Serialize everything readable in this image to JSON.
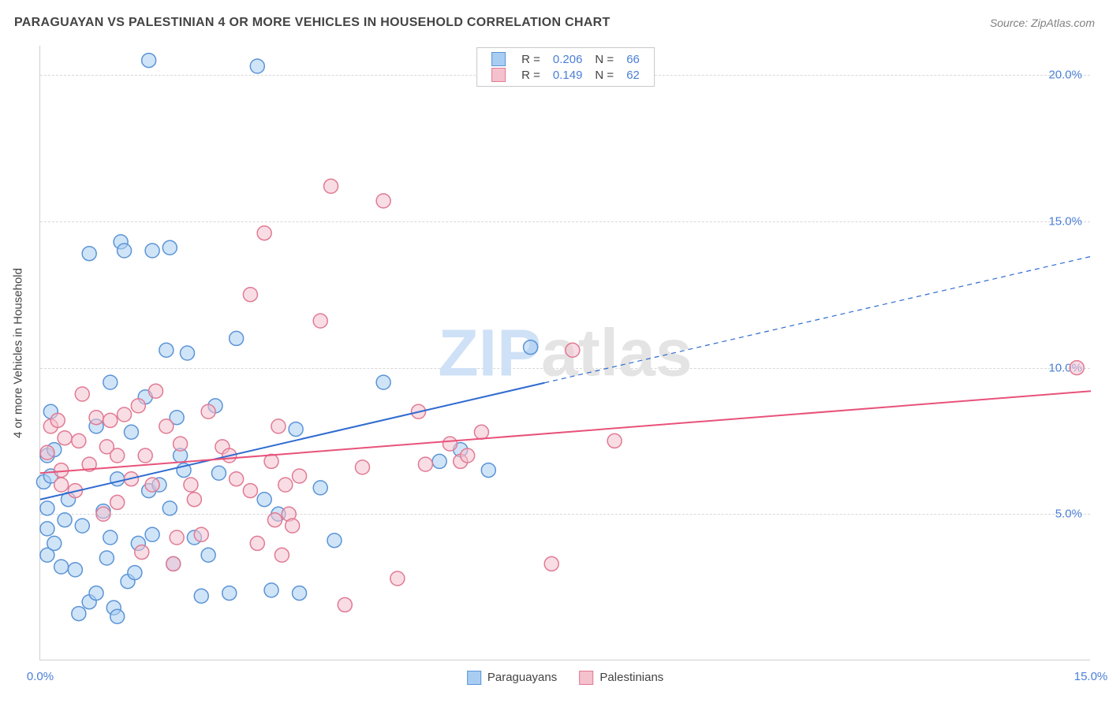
{
  "title": "PARAGUAYAN VS PALESTINIAN 4 OR MORE VEHICLES IN HOUSEHOLD CORRELATION CHART",
  "source": "Source: ZipAtlas.com",
  "yAxisLabel": "4 or more Vehicles in Household",
  "chart": {
    "type": "scatter",
    "xlim": [
      0,
      15
    ],
    "ylim": [
      0,
      21
    ],
    "xTicks": [
      {
        "v": 0,
        "label": "0.0%"
      },
      {
        "v": 15,
        "label": "15.0%"
      }
    ],
    "yTicks": [
      {
        "v": 5,
        "label": "5.0%"
      },
      {
        "v": 10,
        "label": "10.0%"
      },
      {
        "v": 15,
        "label": "15.0%"
      },
      {
        "v": 20,
        "label": "20.0%"
      }
    ],
    "gridColor": "#d8d8d8",
    "axisColor": "#cfcfcf",
    "background": "#ffffff",
    "markerRadius": 9,
    "markerStrokeWidth": 1.5,
    "markerOpacity": 0.55,
    "series": [
      {
        "name": "Paraguayans",
        "fill": "#a9cdf2",
        "stroke": "#5b94d6",
        "R": "0.206",
        "N": "66",
        "trend": {
          "x1": 0,
          "y1": 5.5,
          "x2": 15,
          "y2": 13.8,
          "solidUntilX": 7.2,
          "color": "#2f6bd0",
          "width": 2
        },
        "points": [
          [
            0.05,
            6.1
          ],
          [
            0.1,
            4.5
          ],
          [
            0.1,
            7.0
          ],
          [
            0.15,
            6.3
          ],
          [
            0.2,
            7.2
          ],
          [
            0.1,
            5.2
          ],
          [
            0.15,
            8.5
          ],
          [
            0.1,
            3.6
          ],
          [
            0.2,
            4.0
          ],
          [
            0.3,
            3.2
          ],
          [
            0.35,
            4.8
          ],
          [
            0.4,
            5.5
          ],
          [
            0.5,
            3.1
          ],
          [
            0.55,
            1.6
          ],
          [
            0.6,
            4.6
          ],
          [
            0.7,
            2.0
          ],
          [
            0.7,
            13.9
          ],
          [
            0.8,
            8.0
          ],
          [
            0.8,
            2.3
          ],
          [
            0.9,
            5.1
          ],
          [
            0.95,
            3.5
          ],
          [
            1.0,
            9.5
          ],
          [
            1.0,
            4.2
          ],
          [
            1.05,
            1.8
          ],
          [
            1.1,
            6.2
          ],
          [
            1.1,
            1.5
          ],
          [
            1.15,
            14.3
          ],
          [
            1.2,
            14.0
          ],
          [
            1.25,
            2.7
          ],
          [
            1.3,
            7.8
          ],
          [
            1.35,
            3.0
          ],
          [
            1.4,
            4.0
          ],
          [
            1.5,
            9.0
          ],
          [
            1.55,
            5.8
          ],
          [
            1.6,
            14.0
          ],
          [
            1.6,
            4.3
          ],
          [
            1.55,
            20.5
          ],
          [
            1.7,
            6.0
          ],
          [
            1.8,
            10.6
          ],
          [
            1.85,
            5.2
          ],
          [
            1.85,
            14.1
          ],
          [
            1.9,
            3.3
          ],
          [
            1.95,
            8.3
          ],
          [
            2.0,
            7.0
          ],
          [
            2.05,
            6.5
          ],
          [
            2.1,
            10.5
          ],
          [
            2.2,
            4.2
          ],
          [
            2.3,
            2.2
          ],
          [
            2.4,
            3.6
          ],
          [
            2.5,
            8.7
          ],
          [
            2.55,
            6.4
          ],
          [
            2.7,
            2.3
          ],
          [
            2.8,
            11.0
          ],
          [
            3.1,
            20.3
          ],
          [
            3.2,
            5.5
          ],
          [
            3.3,
            2.4
          ],
          [
            3.4,
            5.0
          ],
          [
            3.65,
            7.9
          ],
          [
            3.7,
            2.3
          ],
          [
            4.0,
            5.9
          ],
          [
            4.2,
            4.1
          ],
          [
            4.9,
            9.5
          ],
          [
            5.7,
            6.8
          ],
          [
            6.0,
            7.2
          ],
          [
            6.4,
            6.5
          ],
          [
            7.0,
            10.7
          ]
        ]
      },
      {
        "name": "Palestinians",
        "fill": "#f4c1cd",
        "stroke": "#e17a93",
        "R": "0.149",
        "N": "62",
        "trend": {
          "x1": 0,
          "y1": 6.4,
          "x2": 15,
          "y2": 9.2,
          "solidUntilX": 15,
          "color": "#e8527a",
          "width": 2
        },
        "points": [
          [
            0.1,
            7.1
          ],
          [
            0.15,
            8.0
          ],
          [
            0.25,
            8.2
          ],
          [
            0.3,
            6.5
          ],
          [
            0.3,
            6.0
          ],
          [
            0.35,
            7.6
          ],
          [
            0.5,
            5.8
          ],
          [
            0.55,
            7.5
          ],
          [
            0.6,
            9.1
          ],
          [
            0.7,
            6.7
          ],
          [
            0.8,
            8.3
          ],
          [
            0.9,
            5.0
          ],
          [
            0.95,
            7.3
          ],
          [
            1.0,
            8.2
          ],
          [
            1.1,
            7.0
          ],
          [
            1.1,
            5.4
          ],
          [
            1.2,
            8.4
          ],
          [
            1.3,
            6.2
          ],
          [
            1.4,
            8.7
          ],
          [
            1.45,
            3.7
          ],
          [
            1.5,
            7.0
          ],
          [
            1.6,
            6.0
          ],
          [
            1.65,
            9.2
          ],
          [
            1.8,
            8.0
          ],
          [
            1.9,
            3.3
          ],
          [
            1.95,
            4.2
          ],
          [
            2.0,
            7.4
          ],
          [
            2.15,
            6.0
          ],
          [
            2.2,
            5.5
          ],
          [
            2.3,
            4.3
          ],
          [
            2.4,
            8.5
          ],
          [
            2.6,
            7.3
          ],
          [
            2.7,
            7.0
          ],
          [
            2.8,
            6.2
          ],
          [
            3.0,
            5.8
          ],
          [
            3.0,
            12.5
          ],
          [
            3.1,
            4.0
          ],
          [
            3.2,
            14.6
          ],
          [
            3.3,
            6.8
          ],
          [
            3.35,
            4.8
          ],
          [
            3.4,
            8.0
          ],
          [
            3.45,
            3.6
          ],
          [
            3.5,
            6.0
          ],
          [
            3.55,
            5.0
          ],
          [
            3.6,
            4.6
          ],
          [
            3.7,
            6.3
          ],
          [
            4.0,
            11.6
          ],
          [
            4.15,
            16.2
          ],
          [
            4.35,
            1.9
          ],
          [
            4.6,
            6.6
          ],
          [
            4.9,
            15.7
          ],
          [
            5.1,
            2.8
          ],
          [
            5.4,
            8.5
          ],
          [
            5.5,
            6.7
          ],
          [
            5.85,
            7.4
          ],
          [
            6.0,
            6.8
          ],
          [
            6.1,
            7.0
          ],
          [
            6.3,
            7.8
          ],
          [
            7.3,
            3.3
          ],
          [
            7.6,
            10.6
          ],
          [
            8.2,
            7.5
          ],
          [
            14.8,
            10.0
          ]
        ]
      }
    ]
  },
  "legendTop": {
    "cols": [
      "R =",
      "N ="
    ]
  },
  "watermark": {
    "text": "ZIPatlas",
    "zipColor": "#cfe1f6",
    "atlasColor": "#e4e4e4"
  }
}
